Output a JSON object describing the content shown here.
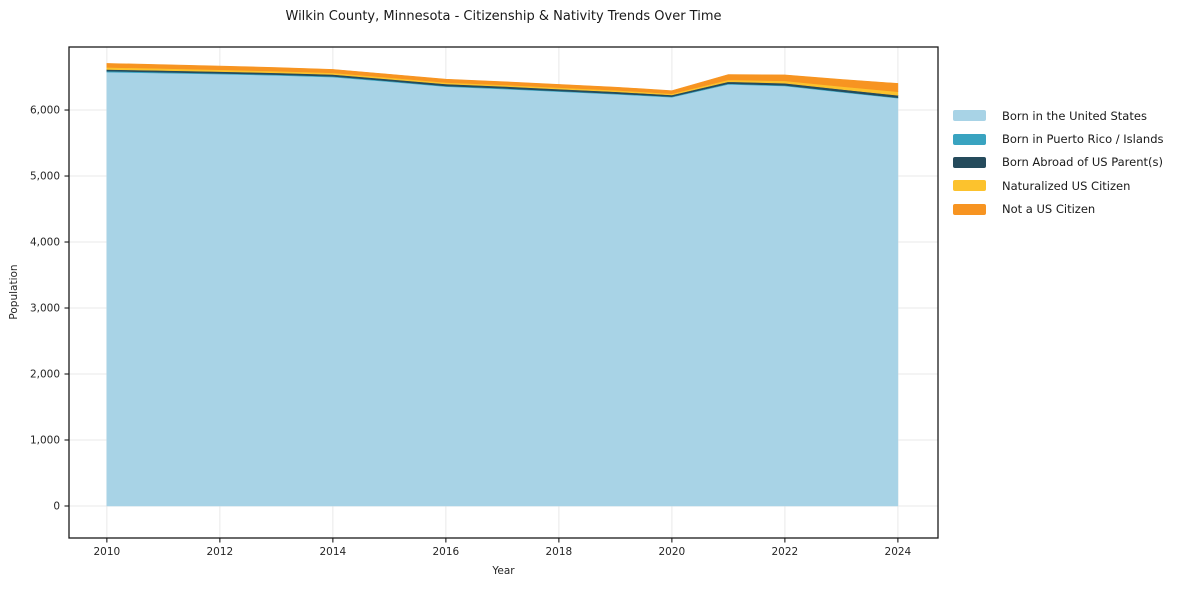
{
  "chart_data": {
    "type": "area",
    "stacked": true,
    "title": "Wilkin County, Minnesota - Citizenship & Nativity Trends Over Time",
    "xlabel": "Year",
    "ylabel": "Population",
    "x": [
      2010,
      2011,
      2012,
      2013,
      2014,
      2015,
      2016,
      2017,
      2018,
      2019,
      2020,
      2021,
      2022,
      2023,
      2024
    ],
    "series": [
      {
        "name": "Born in the United States",
        "color": "#a8d3e6",
        "values": [
          6575,
          6560,
          6545,
          6525,
          6500,
          6430,
          6355,
          6320,
          6280,
          6240,
          6195,
          6390,
          6365,
          6270,
          6180
        ]
      },
      {
        "name": "Born in Puerto Rico / Islands",
        "color": "#39a3c0",
        "values": [
          15,
          14,
          12,
          12,
          11,
          10,
          10,
          10,
          10,
          10,
          8,
          10,
          10,
          9,
          8
        ]
      },
      {
        "name": "Born Abroad of US Parent(s)",
        "color": "#254b5c",
        "values": [
          25,
          25,
          26,
          27,
          28,
          28,
          30,
          30,
          28,
          27,
          25,
          30,
          32,
          34,
          35
        ]
      },
      {
        "name": "Naturalized US Citizen",
        "color": "#fcc22d",
        "values": [
          32,
          30,
          28,
          26,
          25,
          24,
          22,
          22,
          23,
          24,
          20,
          28,
          35,
          45,
          55
        ]
      },
      {
        "name": "Not a US Citizen",
        "color": "#f79421",
        "values": [
          60,
          58,
          55,
          54,
          52,
          50,
          50,
          48,
          47,
          46,
          45,
          80,
          90,
          105,
          125
        ]
      }
    ],
    "xticks": [
      2010,
      2012,
      2014,
      2016,
      2018,
      2020,
      2022,
      2024
    ],
    "yticks": [
      0,
      1000,
      2000,
      3000,
      4000,
      5000,
      6000
    ],
    "ytick_labels": [
      "0",
      "1,000",
      "2,000",
      "3,000",
      "4,000",
      "5,000",
      "6,000"
    ],
    "xlim": [
      2009.33,
      2024.71
    ],
    "ylim": [
      -485,
      6955
    ],
    "grid": true,
    "legend_position": "right",
    "style": {
      "grid_color": "#e9e9e9",
      "spine_color": "#1a1a1a",
      "tick_text_color": "#262626",
      "background": "#ffffff"
    }
  }
}
